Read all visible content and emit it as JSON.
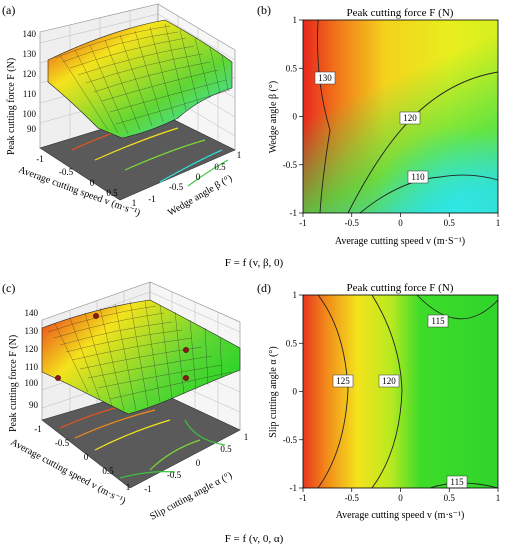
{
  "colors": {
    "hot": "#e8261e",
    "mid": "#f4e31c",
    "cool": "#2fd14a",
    "cyan": "#2ee8e6",
    "floor": "#5a5a5a",
    "wall": "#ececec"
  },
  "chart_data": [
    {
      "panel": "(a)",
      "type": "surface3d",
      "zlabel": "Peak cutting force F (N)",
      "xlabel": "Average cutting speed v (m·s⁻¹)",
      "ylabel": "Wedge angle β (°)",
      "z_ticks": [
        "140",
        "130",
        "120",
        "110",
        "100",
        "90"
      ],
      "x_ticks": [
        "-1",
        "-0.5",
        "0",
        "0.5",
        "1"
      ],
      "y_ticks": [
        "1",
        "0.5",
        "0",
        "-0.5",
        "-1"
      ],
      "zlim": [
        85,
        140
      ],
      "caption": "F = f (v, β, 0)"
    },
    {
      "panel": "(b)",
      "type": "contour",
      "title": "Peak cutting force F (N)",
      "xlabel": "Average cutting speed v (m·S⁻¹)",
      "ylabel": "Wedge angle β (°)",
      "xlim": [
        -1,
        1
      ],
      "ylim": [
        -1,
        1
      ],
      "x_ticks": [
        "-1",
        "-0.5",
        "0",
        "0.5",
        "1"
      ],
      "y_ticks": [
        "1",
        "0.5",
        "0",
        "-0.5",
        "-1"
      ],
      "contour_labels": [
        "130",
        "120",
        "110"
      ]
    },
    {
      "panel": "(c)",
      "type": "surface3d",
      "zlabel": "Peak cutting force F (N)",
      "xlabel": "Average cutting speed v (m·s⁻¹)",
      "ylabel": "Slip cutting angle α (°)",
      "z_ticks": [
        "140",
        "130",
        "120",
        "110",
        "100",
        "90"
      ],
      "x_ticks": [
        "-1",
        "-0.5",
        "0",
        "0.5",
        "1"
      ],
      "y_ticks": [
        "1",
        "0.5",
        "0",
        "-0.5",
        "-1"
      ],
      "zlim": [
        85,
        140
      ],
      "caption": "F = f (v, 0, α)"
    },
    {
      "panel": "(d)",
      "type": "contour",
      "title": "Peak cutting force F (N)",
      "xlabel": "Average cutting speed v (m·s⁻¹)",
      "ylabel": "Slip cutting angle α (°)",
      "xlim": [
        -1,
        1
      ],
      "ylim": [
        -1,
        1
      ],
      "x_ticks": [
        "-1",
        "-0.5",
        "0",
        "0.5",
        "1"
      ],
      "y_ticks": [
        "1",
        "0.5",
        "0",
        "-0.5",
        "-1"
      ],
      "contour_labels": [
        "115",
        "125",
        "120",
        "115"
      ]
    }
  ]
}
